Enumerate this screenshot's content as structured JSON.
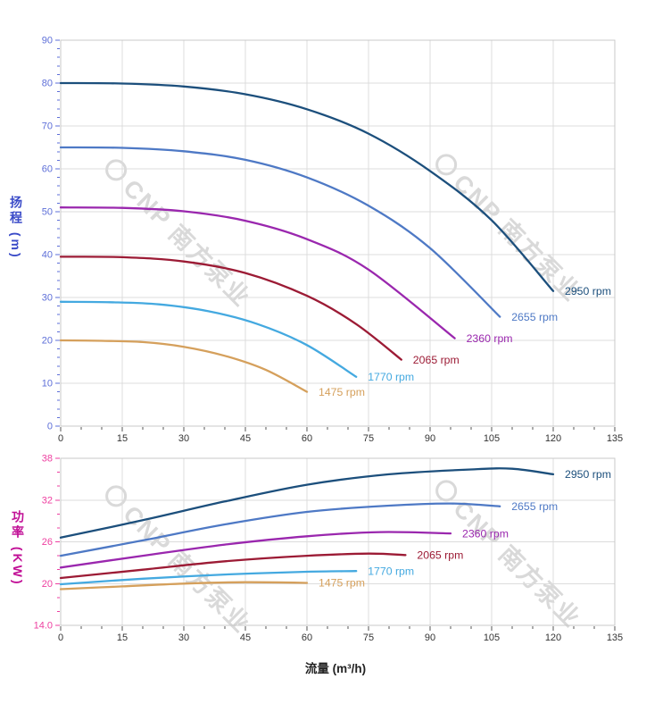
{
  "watermark": {
    "text": "CNP 南方泵业"
  },
  "palette": {
    "grid": "#dcdcdc",
    "border": "#c8c8c8",
    "xtick_text": "#333333"
  },
  "chart_data": [
    {
      "id": "head-flow-chart",
      "type": "line",
      "title": "",
      "xlabel": "",
      "ylabel": "扬程 (m)",
      "xlim": [
        0,
        135
      ],
      "ylim": [
        0,
        90
      ],
      "xticks": [
        0,
        15,
        30,
        45,
        60,
        75,
        90,
        105,
        120,
        135
      ],
      "x_minor_step": 5,
      "yticks": [
        0,
        10,
        20,
        30,
        40,
        50,
        60,
        70,
        80,
        90
      ],
      "ytick_labels": [
        "0",
        "10",
        "20",
        "30",
        "40",
        "50",
        "60",
        "70",
        "80",
        "90"
      ],
      "y_minor_step": 2,
      "grid": true,
      "legend_position": "line-end",
      "axis_color": "#5e6fd8",
      "series": [
        {
          "name": "2950 rpm",
          "color": "#1c4f7c",
          "points": [
            [
              0,
              80
            ],
            [
              15,
              79.9
            ],
            [
              30,
              79.2
            ],
            [
              45,
              77.4
            ],
            [
              60,
              73.9
            ],
            [
              75,
              68.2
            ],
            [
              90,
              59.5
            ],
            [
              105,
              48
            ],
            [
              120,
              31.5
            ]
          ]
        },
        {
          "name": "2655 rpm",
          "color": "#4e79c5",
          "points": [
            [
              0,
              65
            ],
            [
              15,
              64.9
            ],
            [
              30,
              64.1
            ],
            [
              45,
              62.1
            ],
            [
              60,
              58
            ],
            [
              75,
              51.4
            ],
            [
              90,
              41.5
            ],
            [
              107,
              25.5
            ]
          ]
        },
        {
          "name": "2360 rpm",
          "color": "#9a27ae",
          "points": [
            [
              0,
              51
            ],
            [
              15,
              50.9
            ],
            [
              30,
              50.1
            ],
            [
              45,
              47.9
            ],
            [
              60,
              43.6
            ],
            [
              75,
              36.5
            ],
            [
              96,
              20.5
            ]
          ]
        },
        {
          "name": "2065 rpm",
          "color": "#9c1b35",
          "points": [
            [
              0,
              39.5
            ],
            [
              15,
              39.4
            ],
            [
              30,
              38.4
            ],
            [
              45,
              35.7
            ],
            [
              60,
              30.4
            ],
            [
              72,
              23.8
            ],
            [
              83,
              15.5
            ]
          ]
        },
        {
          "name": "1770 rpm",
          "color": "#44a9e0",
          "points": [
            [
              0,
              29
            ],
            [
              12,
              28.9
            ],
            [
              24,
              28.4
            ],
            [
              36,
              26.8
            ],
            [
              48,
              23.8
            ],
            [
              60,
              18.9
            ],
            [
              72,
              11.5
            ]
          ]
        },
        {
          "name": "1475 rpm",
          "color": "#d5a05c",
          "points": [
            [
              0,
              20
            ],
            [
              10,
              19.9
            ],
            [
              20,
              19.6
            ],
            [
              30,
              18.5
            ],
            [
              40,
              16.4
            ],
            [
              50,
              13.1
            ],
            [
              60,
              8
            ]
          ]
        }
      ]
    },
    {
      "id": "power-flow-chart",
      "type": "line",
      "title": "",
      "xlabel": "流量 (m³/h)",
      "ylabel": "功率 (KW)",
      "xlim": [
        0,
        135
      ],
      "ylim": [
        14,
        38
      ],
      "xticks": [
        0,
        15,
        30,
        45,
        60,
        75,
        90,
        105,
        120,
        135
      ],
      "x_minor_step": 5,
      "yticks": [
        14,
        20,
        26,
        32,
        38
      ],
      "ytick_labels": [
        "14.0",
        "20",
        "26",
        "32",
        "38"
      ],
      "y_minor_step": 2,
      "grid": true,
      "legend_position": "line-end",
      "axis_color": "#ee3fa0",
      "series": [
        {
          "name": "2950 rpm",
          "color": "#1c4f7c",
          "points": [
            [
              0,
              26.6
            ],
            [
              20,
              29.1
            ],
            [
              40,
              31.8
            ],
            [
              60,
              34.2
            ],
            [
              80,
              35.7
            ],
            [
              100,
              36.4
            ],
            [
              110,
              36.5
            ],
            [
              120,
              35.7
            ]
          ]
        },
        {
          "name": "2655 rpm",
          "color": "#4e79c5",
          "points": [
            [
              0,
              24
            ],
            [
              20,
              26.2
            ],
            [
              40,
              28.5
            ],
            [
              60,
              30.3
            ],
            [
              80,
              31.2
            ],
            [
              95,
              31.5
            ],
            [
              107,
              31.1
            ]
          ]
        },
        {
          "name": "2360 rpm",
          "color": "#9a27ae",
          "points": [
            [
              0,
              22.3
            ],
            [
              20,
              24
            ],
            [
              40,
              25.6
            ],
            [
              60,
              26.8
            ],
            [
              78,
              27.4
            ],
            [
              95,
              27.2
            ]
          ]
        },
        {
          "name": "2065 rpm",
          "color": "#9c1b35",
          "points": [
            [
              0,
              20.8
            ],
            [
              20,
              22
            ],
            [
              40,
              23.2
            ],
            [
              60,
              24
            ],
            [
              75,
              24.3
            ],
            [
              84,
              24.1
            ]
          ]
        },
        {
          "name": "1770 rpm",
          "color": "#44a9e0",
          "points": [
            [
              0,
              19.9
            ],
            [
              20,
              20.7
            ],
            [
              40,
              21.3
            ],
            [
              60,
              21.7
            ],
            [
              72,
              21.8
            ]
          ]
        },
        {
          "name": "1475 rpm",
          "color": "#d5a05c",
          "points": [
            [
              0,
              19.2
            ],
            [
              15,
              19.6
            ],
            [
              30,
              20
            ],
            [
              45,
              20.2
            ],
            [
              60,
              20.1
            ]
          ]
        }
      ]
    }
  ]
}
